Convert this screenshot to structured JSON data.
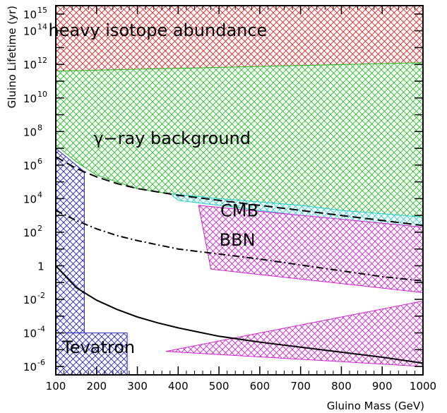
{
  "chart_data": {
    "type": "area",
    "title": "",
    "xlabel": "Gluino Mass (GeV)",
    "ylabel": "Gluino Lifetime (yr)",
    "x_scale": "linear",
    "y_scale": "log",
    "xlim": [
      100,
      1000
    ],
    "ylim_log10": [
      -6.5,
      15.5
    ],
    "x_ticks": [
      {
        "value": 100,
        "label": "100"
      },
      {
        "value": 200,
        "label": "200"
      },
      {
        "value": 300,
        "label": "300"
      },
      {
        "value": 400,
        "label": "400"
      },
      {
        "value": 500,
        "label": "500"
      },
      {
        "value": 600,
        "label": "600"
      },
      {
        "value": 700,
        "label": "700"
      },
      {
        "value": 800,
        "label": "800"
      },
      {
        "value": 900,
        "label": "900"
      },
      {
        "value": 1000,
        "label": "1000"
      }
    ],
    "y_ticks": [
      {
        "exp": -6,
        "base": "10",
        "sup": "-6"
      },
      {
        "exp": -4,
        "base": "10",
        "sup": "-4"
      },
      {
        "exp": -2,
        "base": "10",
        "sup": "-2"
      },
      {
        "exp": 0,
        "base": "1",
        "sup": ""
      },
      {
        "exp": 2,
        "base": "10",
        "sup": "2"
      },
      {
        "exp": 4,
        "base": "10",
        "sup": "4"
      },
      {
        "exp": 6,
        "base": "10",
        "sup": "6"
      },
      {
        "exp": 8,
        "base": "10",
        "sup": "8"
      },
      {
        "exp": 10,
        "base": "10",
        "sup": "10"
      },
      {
        "exp": 12,
        "base": "10",
        "sup": "12"
      },
      {
        "exp": 14,
        "base": "10",
        "sup": "14"
      },
      {
        "exp": 15,
        "base": "10",
        "sup": "15"
      }
    ],
    "regions": [
      {
        "id": "heavy-isotope",
        "label": "heavy isotope abundance",
        "color": "#dd2222",
        "fill": "#f5a3a3",
        "polygon": [
          [
            100,
            15.5
          ],
          [
            1000,
            15.5
          ],
          [
            1000,
            12.1
          ],
          [
            100,
            11.6
          ]
        ]
      },
      {
        "id": "gamma-ray",
        "label": "γ−ray background",
        "color": "#22bb22",
        "fill": "#9ee89e",
        "polygon": [
          [
            100,
            11.6
          ],
          [
            1000,
            12.1
          ],
          [
            1000,
            2.9
          ],
          [
            900,
            3.0
          ],
          [
            800,
            3.2
          ],
          [
            700,
            3.4
          ],
          [
            600,
            3.6
          ],
          [
            500,
            3.9
          ],
          [
            400,
            4.2
          ],
          [
            300,
            4.6
          ],
          [
            200,
            5.4
          ],
          [
            150,
            6.2
          ],
          [
            125,
            6.7
          ],
          [
            100,
            7.2
          ]
        ]
      },
      {
        "id": "cmb",
        "label": "CMB",
        "color": "#22cccc",
        "fill": "#9eeeee",
        "polygon": [
          [
            380,
            4.3
          ],
          [
            500,
            4.0
          ],
          [
            600,
            3.8
          ],
          [
            700,
            3.6
          ],
          [
            800,
            3.3
          ],
          [
            900,
            3.1
          ],
          [
            1000,
            2.9
          ],
          [
            1000,
            1.8
          ],
          [
            900,
            2.2
          ],
          [
            800,
            2.6
          ],
          [
            700,
            3.0
          ],
          [
            600,
            3.3
          ],
          [
            500,
            3.6
          ],
          [
            400,
            3.9
          ]
        ]
      },
      {
        "id": "bbn-upper",
        "label": "BBN",
        "color": "#cc22cc",
        "fill": "#f0a8f0",
        "polygon": [
          [
            450,
            3.6
          ],
          [
            1000,
            2.3
          ],
          [
            1000,
            -1.6
          ],
          [
            480,
            -0.2
          ]
        ]
      },
      {
        "id": "bbn-lower",
        "label": "",
        "color": "#cc22cc",
        "fill": "#f0a8f0",
        "polygon": [
          [
            370,
            -5.1
          ],
          [
            1000,
            -2.1
          ],
          [
            1000,
            -6.0
          ]
        ]
      },
      {
        "id": "tevatron-vertical",
        "label": "",
        "color": "#2222bb",
        "fill": "#a8a8ee",
        "polygon": [
          [
            100,
            7.0
          ],
          [
            170,
            5.6
          ],
          [
            170,
            -4.0
          ],
          [
            100,
            -4.0
          ]
        ]
      },
      {
        "id": "tevatron",
        "label": "Tevatron",
        "color": "#2222bb",
        "fill": "#a8a8ee",
        "polygon": [
          [
            100,
            -4.0
          ],
          [
            275,
            -4.0
          ],
          [
            275,
            -6.5
          ],
          [
            100,
            -6.5
          ]
        ]
      }
    ],
    "series": [
      {
        "style": "dashed",
        "color": "#000000",
        "x": [
          100,
          150,
          200,
          250,
          300,
          350,
          400,
          450,
          500,
          600,
          700,
          800,
          900,
          1000
        ],
        "log10_y": [
          6.5,
          5.8,
          5.3,
          4.9,
          4.6,
          4.4,
          4.2,
          4.05,
          3.9,
          3.6,
          3.3,
          3.0,
          2.7,
          2.4
        ]
      },
      {
        "style": "dash-dot",
        "color": "#000000",
        "x": [
          100,
          150,
          200,
          250,
          300,
          350,
          400,
          450,
          500,
          600,
          700,
          800,
          900,
          1000
        ],
        "log10_y": [
          3.3,
          2.7,
          2.2,
          1.8,
          1.5,
          1.25,
          1.0,
          0.85,
          0.7,
          0.4,
          0.05,
          -0.3,
          -0.65,
          -0.9
        ]
      },
      {
        "style": "solid",
        "color": "#000000",
        "x": [
          100,
          150,
          200,
          250,
          300,
          350,
          400,
          450,
          500,
          600,
          700,
          800,
          900,
          1000
        ],
        "log10_y": [
          0.0,
          -1.3,
          -2.05,
          -2.6,
          -3.05,
          -3.4,
          -3.7,
          -3.95,
          -4.2,
          -4.55,
          -4.85,
          -5.15,
          -5.45,
          -5.8
        ]
      }
    ],
    "labels": [
      {
        "id": "heavy-isotope",
        "text": "heavy isotope abundance",
        "x": 350,
        "log10_y": 13.7
      },
      {
        "id": "gamma-ray",
        "text": "γ−ray background",
        "x": 385,
        "log10_y": 7.25
      },
      {
        "id": "cmb",
        "text": "CMB",
        "x": 550,
        "log10_y": 2.95
      },
      {
        "id": "bbn",
        "text": "BBN",
        "x": 545,
        "log10_y": 1.2
      },
      {
        "id": "tevatron",
        "text": "Tevatron",
        "x": 205,
        "log10_y": -5.2
      }
    ]
  }
}
